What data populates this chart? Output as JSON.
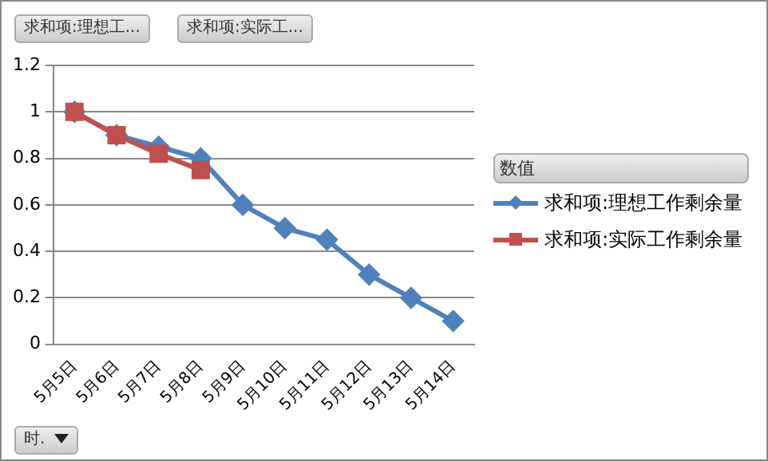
{
  "chart_data": {
    "type": "line",
    "categories": [
      "5月5日",
      "5月6日",
      "5月7日",
      "5月8日",
      "5月9日",
      "5月10日",
      "5月11日",
      "5月12日",
      "5月13日",
      "5月14日"
    ],
    "series": [
      {
        "name": "求和项:理想工作剩余量",
        "color": "#4f81bd",
        "marker": "diamond",
        "values": [
          1,
          0.9,
          0.85,
          0.8,
          0.6,
          0.5,
          0.45,
          0.3,
          0.2,
          0.1
        ]
      },
      {
        "name": "求和项:实际工作剩余量",
        "color": "#c0504d",
        "marker": "square",
        "values": [
          1,
          0.9,
          0.82,
          0.75,
          null,
          null,
          null,
          null,
          null,
          null
        ]
      }
    ],
    "ylim": [
      0,
      1.2
    ],
    "yticks": [
      0,
      0.2,
      0.4,
      0.6,
      0.8,
      1,
      1.2
    ],
    "grid": "y",
    "legend": "right",
    "legend_title": "数值",
    "annotations": [
      "求和项:理想工...",
      "求和项:实际工...",
      "时."
    ]
  }
}
